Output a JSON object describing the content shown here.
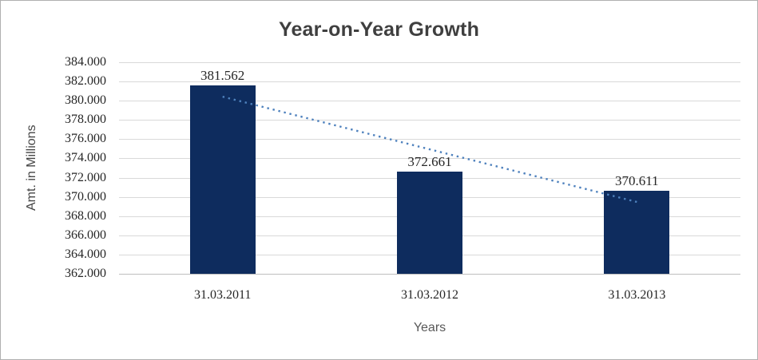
{
  "window": {
    "background": "#ffffff",
    "border_color": "#b0b0b0"
  },
  "chart_data": {
    "type": "bar",
    "title": "Year-on-Year Growth",
    "xlabel": "Years",
    "ylabel": "Amt. in Millions",
    "categories": [
      "31.03.2011",
      "31.03.2012",
      "31.03.2013"
    ],
    "values": [
      381.562,
      372.661,
      370.611
    ],
    "value_labels": [
      "381.562",
      "372.661",
      "370.611"
    ],
    "ylim": [
      362,
      384
    ],
    "ytick_step": 2,
    "ytick_labels": [
      "384.000",
      "382.000",
      "380.000",
      "378.000",
      "376.000",
      "374.000",
      "372.000",
      "370.000",
      "368.000",
      "366.000",
      "364.000",
      "362.000"
    ],
    "grid": true,
    "legend": "none",
    "bar_color": "#0e2c5e",
    "gridline_color": "#d9d9d9",
    "axis_line_color": "#bfbfbf",
    "title_color": "#3f3f3f",
    "label_color": "#262626",
    "axis_title_color": "#595959",
    "trendline": {
      "style": "dotted",
      "color": "#4e81bd",
      "start_value": 380.42,
      "end_value": 369.47
    }
  }
}
